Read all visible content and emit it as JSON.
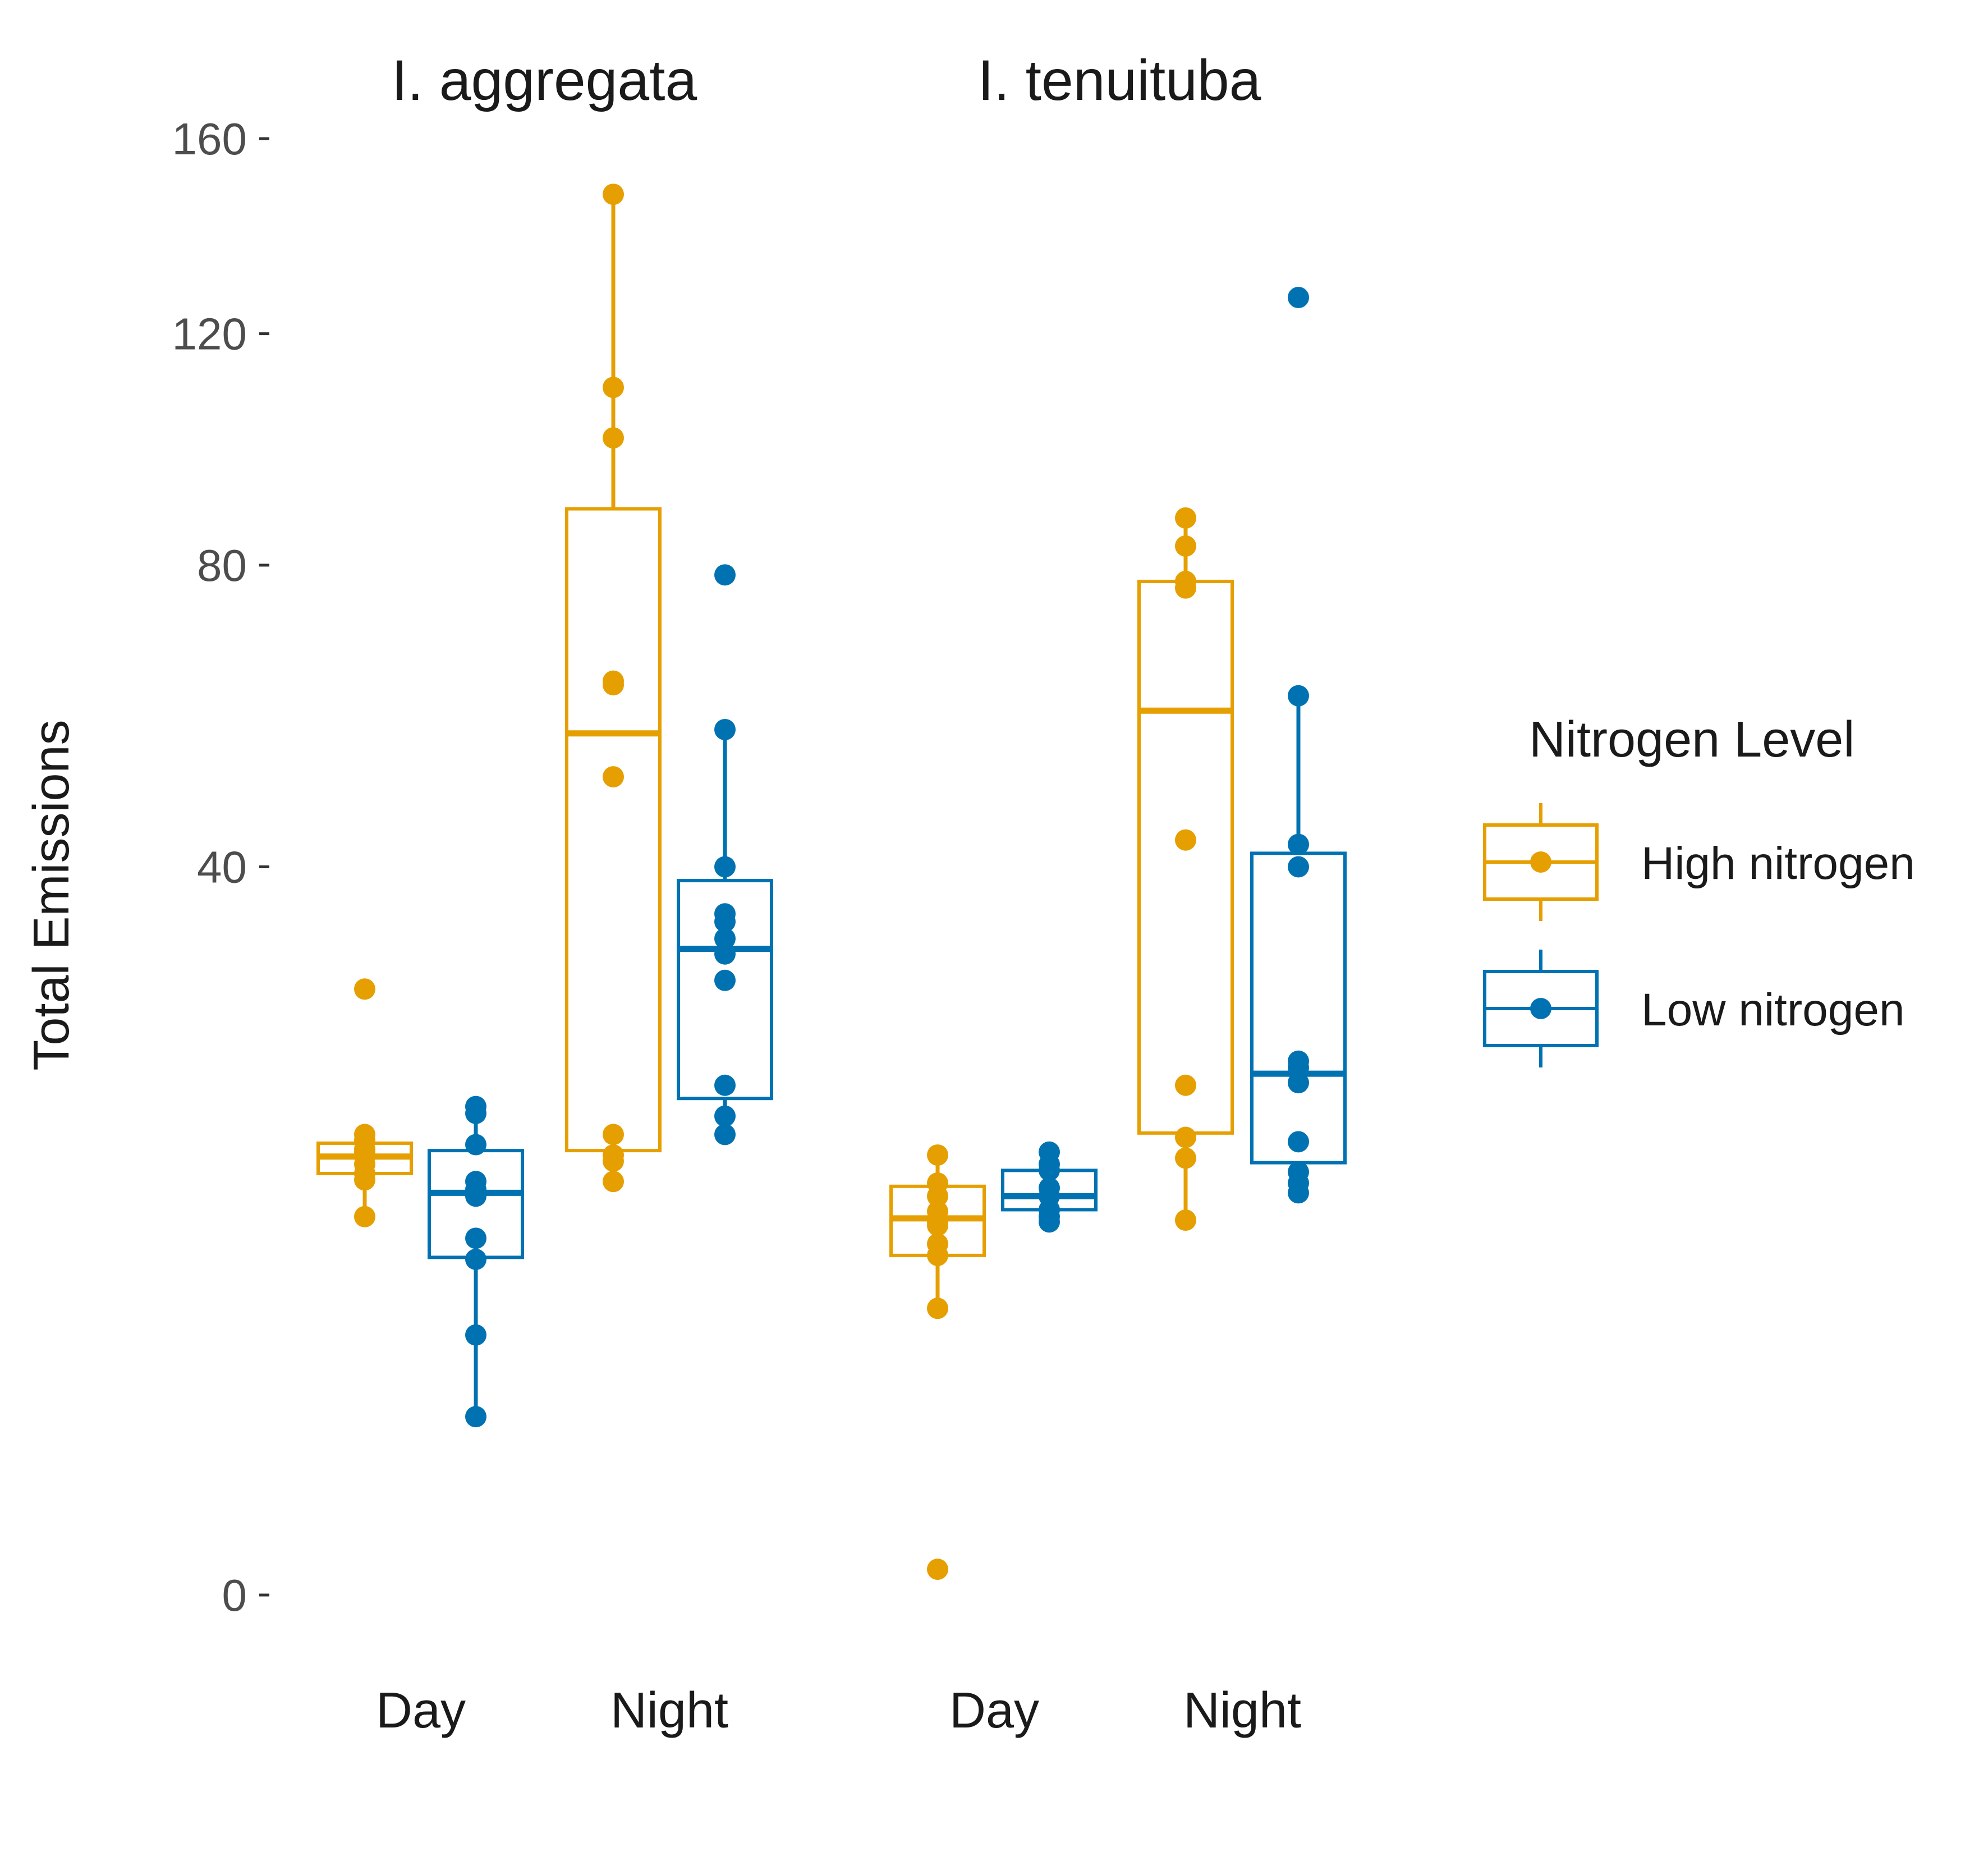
{
  "chart_data": {
    "type": "box",
    "ylabel": "Total Emissions",
    "ylim": [
      -6,
      162
    ],
    "y_ticks": [
      0,
      40,
      80,
      120,
      160
    ],
    "x_categories": [
      "Day",
      "Night"
    ],
    "legend": {
      "title": "Nitrogen Level",
      "position": "right",
      "entries": [
        {
          "name": "High nitrogen",
          "color": "#E69F00"
        },
        {
          "name": "Low nitrogen",
          "color": "#0072B2"
        }
      ]
    },
    "panels": [
      {
        "title": "I. aggregata",
        "groups": [
          {
            "x": "Day",
            "series": "High nitrogen",
            "q1": 13.4,
            "median": 14.5,
            "q3": 15.4,
            "whisker_low": 10.8,
            "whisker_high": 16.0,
            "points": [
              27.7,
              16.0,
              15.6,
              15.0,
              14.8,
              14.5,
              14.0,
              13.4,
              13.0,
              10.8
            ]
          },
          {
            "x": "Day",
            "series": "Low nitrogen",
            "q1": 8.6,
            "median": 12.2,
            "q3": 14.9,
            "whisker_low": 2.4,
            "whisker_high": 18.0,
            "points": [
              18.0,
              17.5,
              15.3,
              12.9,
              12.4,
              12.0,
              9.6,
              8.5,
              5.1,
              2.4
            ]
          },
          {
            "x": "Night",
            "series": "High nitrogen",
            "q1": 14.9,
            "median": 56.0,
            "q3": 89.0,
            "whisker_low": 12.9,
            "whisker_high": 148.0,
            "points": [
              148.0,
              110.0,
              101.0,
              63.0,
              62.5,
              50.5,
              16.0,
              14.6,
              14.2,
              12.9
            ]
          },
          {
            "x": "Night",
            "series": "Low nitrogen",
            "q1": 18.6,
            "median": 31.5,
            "q3": 38.5,
            "whisker_low": 16.0,
            "whisker_high": 56.5,
            "points": [
              78.5,
              56.5,
              40.0,
              35.0,
              34.2,
              32.5,
              31.0,
              28.5,
              19.6,
              17.3,
              16.0
            ]
          }
        ]
      },
      {
        "title": "I. tenuituba",
        "groups": [
          {
            "x": "Day",
            "series": "High nitrogen",
            "q1": 8.7,
            "median": 10.7,
            "q3": 12.6,
            "whisker_low": 6.2,
            "whisker_high": 14.6,
            "points": [
              14.6,
              12.8,
              12.0,
              11.1,
              10.5,
              10.3,
              9.3,
              8.7,
              6.2,
              0.05
            ]
          },
          {
            "x": "Day",
            "series": "Low nitrogen",
            "q1": 11.2,
            "median": 12.0,
            "q3": 13.6,
            "whisker_low": 10.5,
            "whisker_high": 14.8,
            "points": [
              14.8,
              14.0,
              13.6,
              12.5,
              12.0,
              11.2,
              10.8,
              10.5
            ]
          },
          {
            "x": "Night",
            "series": "High nitrogen",
            "q1": 16.1,
            "median": 59.0,
            "q3": 77.5,
            "whisker_low": 10.6,
            "whisker_high": 87.5,
            "points": [
              87.5,
              83.0,
              77.5,
              76.5,
              43.0,
              19.6,
              15.8,
              14.4,
              10.6
            ]
          },
          {
            "x": "Night",
            "series": "Low nitrogen",
            "q1": 14.1,
            "median": 20.5,
            "q3": 41.5,
            "whisker_low": 12.2,
            "whisker_high": 61.0,
            "points": [
              127.0,
              61.0,
              42.5,
              40.0,
              21.5,
              21.0,
              19.8,
              15.5,
              13.5,
              12.8,
              12.2
            ]
          }
        ]
      }
    ]
  }
}
